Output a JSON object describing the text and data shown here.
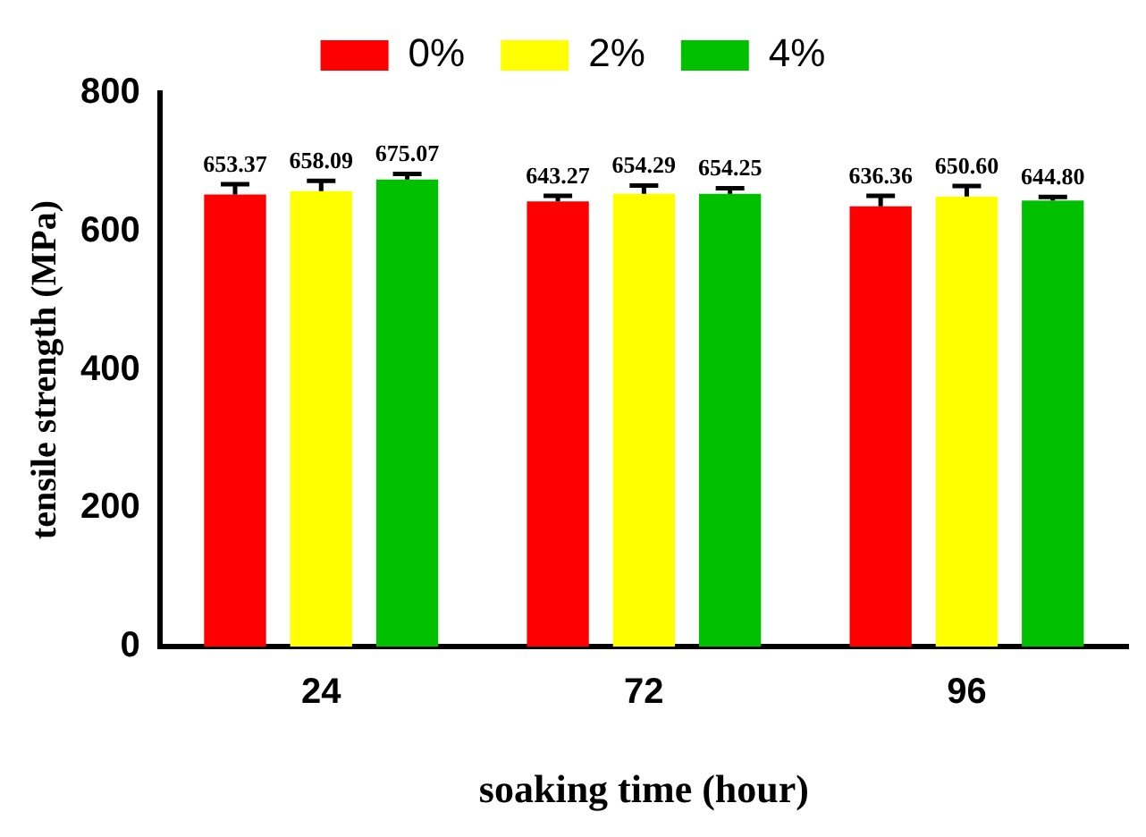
{
  "chart_data": {
    "type": "bar",
    "xlabel": "soaking time (hour)",
    "ylabel": "tensile strength (MPa)",
    "categories": [
      "24",
      "72",
      "96"
    ],
    "series": [
      {
        "name": "0%",
        "color": "#ff0000",
        "values": [
          653.37,
          643.27,
          636.36
        ],
        "errors": [
          15,
          8,
          15
        ],
        "value_labels": [
          "653.37",
          "643.27",
          "636.36"
        ]
      },
      {
        "name": "2%",
        "color": "#ffff00",
        "values": [
          658.09,
          654.29,
          650.6
        ],
        "errors": [
          15,
          12,
          15
        ],
        "value_labels": [
          "658.09",
          "654.29",
          "650.60"
        ]
      },
      {
        "name": "4%",
        "color": "#00c000",
        "values": [
          675.07,
          654.25,
          644.8
        ],
        "errors": [
          8,
          8,
          5
        ],
        "value_labels": [
          "675.07",
          "654.25",
          "644.80"
        ]
      }
    ],
    "ylim": [
      0,
      800
    ],
    "yticks": [
      0,
      200,
      400,
      600,
      800
    ],
    "grid": false,
    "legend": "top",
    "data_labels": false
  }
}
